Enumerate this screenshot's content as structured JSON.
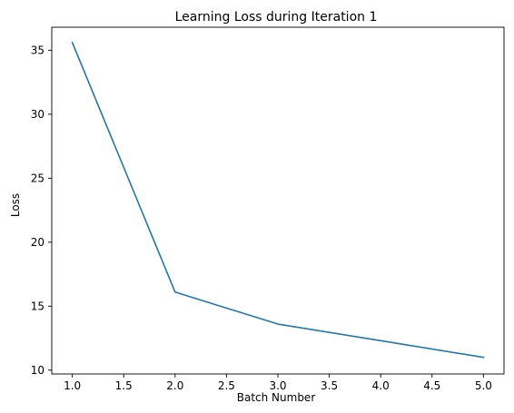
{
  "chart_data": {
    "type": "line",
    "title": "Learning Loss during Iteration 1",
    "xlabel": "Batch Number",
    "ylabel": "Loss",
    "xlim": [
      0.8,
      5.2
    ],
    "ylim": [
      9.7,
      36.8
    ],
    "xticks": [
      1.0,
      1.5,
      2.0,
      2.5,
      3.0,
      3.5,
      4.0,
      4.5,
      5.0
    ],
    "xtick_labels": [
      "1.0",
      "1.5",
      "2.0",
      "2.5",
      "3.0",
      "3.5",
      "4.0",
      "4.5",
      "5.0"
    ],
    "yticks": [
      10,
      15,
      20,
      25,
      30,
      35
    ],
    "ytick_labels": [
      "10",
      "15",
      "20",
      "25",
      "30",
      "35"
    ],
    "grid": false,
    "series": [
      {
        "color": "#1f77b4",
        "x": [
          1,
          2,
          3,
          4,
          5
        ],
        "y": [
          35.6,
          16.1,
          13.6,
          12.3,
          11.0
        ]
      }
    ]
  }
}
